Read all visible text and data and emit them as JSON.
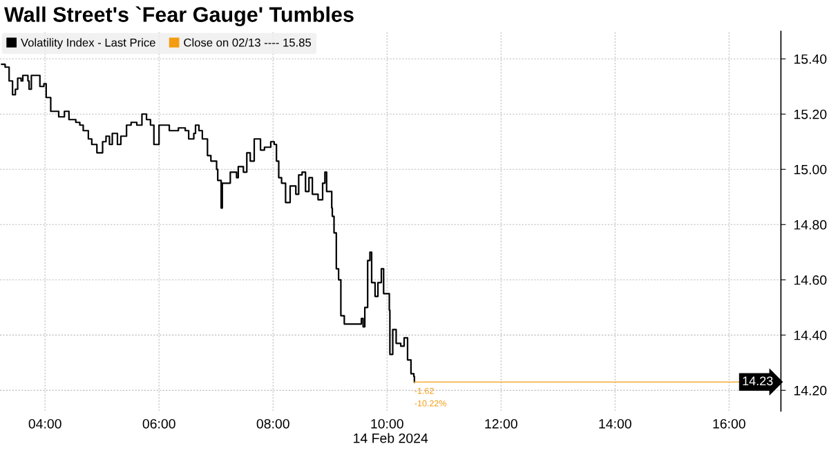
{
  "chart_data": {
    "type": "step",
    "title": "Wall Street's `Fear Gauge' Tumbles",
    "xlabel": "14 Feb 2024",
    "series": [
      {
        "name": "Volatility Index - Last Price",
        "color": "#000000",
        "x": [
          3.24,
          3.3,
          3.37,
          3.43,
          3.48,
          3.52,
          3.58,
          3.61,
          3.7,
          3.72,
          3.76,
          3.85,
          3.91,
          3.98,
          4.02,
          4.1,
          4.16,
          4.24,
          4.3,
          4.34,
          4.42,
          4.48,
          4.54,
          4.61,
          4.67,
          4.76,
          4.82,
          4.91,
          4.95,
          5.01,
          5.07,
          5.13,
          5.18,
          5.27,
          5.33,
          5.43,
          5.51,
          5.61,
          5.7,
          5.78,
          5.85,
          5.91,
          6.0,
          6.06,
          6.18,
          6.34,
          6.46,
          6.52,
          6.61,
          6.64,
          6.7,
          6.76,
          6.85,
          6.91,
          7.01,
          7.03,
          7.09,
          7.11,
          7.18,
          7.25,
          7.36,
          7.39,
          7.48,
          7.54,
          7.6,
          7.67,
          7.78,
          7.85,
          7.96,
          8.02,
          8.06,
          8.1,
          8.15,
          8.22,
          8.3,
          8.4,
          8.45,
          8.51,
          8.57,
          8.63,
          8.69,
          8.79,
          8.87,
          8.91,
          8.94,
          9.03,
          9.04,
          9.07,
          9.11,
          9.15,
          9.19,
          9.25,
          9.55,
          9.58,
          9.61,
          9.66,
          9.7,
          9.73,
          9.79,
          9.84,
          9.9,
          9.94,
          10.04,
          10.05,
          10.1,
          10.16,
          10.24,
          10.3,
          10.36,
          10.42,
          10.47,
          10.48
        ],
        "values": [
          15.38,
          15.37,
          15.32,
          15.27,
          15.29,
          15.33,
          15.32,
          15.34,
          15.32,
          15.29,
          15.34,
          15.34,
          15.3,
          15.31,
          15.26,
          15.21,
          15.21,
          15.19,
          15.19,
          15.21,
          15.18,
          15.18,
          15.17,
          15.16,
          15.14,
          15.11,
          15.09,
          15.06,
          15.06,
          15.1,
          15.12,
          15.09,
          15.13,
          15.09,
          15.12,
          15.16,
          15.17,
          15.16,
          15.2,
          15.18,
          15.16,
          15.09,
          15.16,
          15.16,
          15.14,
          15.15,
          15.14,
          15.11,
          15.13,
          15.16,
          15.14,
          15.11,
          15.05,
          15.03,
          15.0,
          14.96,
          14.86,
          14.95,
          14.95,
          14.99,
          14.97,
          15.01,
          14.99,
          15.06,
          15.03,
          15.11,
          15.07,
          15.08,
          15.1,
          15.09,
          15.03,
          14.97,
          14.95,
          14.88,
          14.94,
          14.91,
          14.98,
          14.99,
          14.92,
          14.97,
          14.91,
          14.89,
          14.95,
          14.99,
          14.92,
          14.86,
          14.83,
          14.77,
          14.64,
          14.6,
          14.47,
          14.44,
          14.46,
          14.43,
          14.5,
          14.67,
          14.7,
          14.59,
          14.54,
          14.59,
          14.64,
          14.55,
          14.49,
          14.33,
          14.42,
          14.37,
          14.36,
          14.39,
          14.31,
          14.26,
          14.25,
          14.23
        ]
      }
    ],
    "ref_lines": [
      {
        "axis": "y",
        "value": 14.23,
        "label": "14.23",
        "color": "#f39c12"
      }
    ],
    "annotations": [
      {
        "text": "-1.62",
        "x": 10.48,
        "y": 14.23
      },
      {
        "text": "-10.22%",
        "x": 10.48,
        "y": 14.23
      },
      "Close on 02/13 ---- 15.85"
    ],
    "xlim": [
      3.21,
      16.91
    ],
    "ylim": [
      14.125,
      15.5
    ],
    "xticks": [
      {
        "value": 4,
        "label": "04:00"
      },
      {
        "value": 6,
        "label": "06:00"
      },
      {
        "value": 8,
        "label": "08:00"
      },
      {
        "value": 10,
        "label": "10:00"
      },
      {
        "value": 12,
        "label": "12:00"
      },
      {
        "value": 14,
        "label": "14:00"
      },
      {
        "value": 16,
        "label": "16:00"
      }
    ],
    "yticks": [
      {
        "value": 14.2,
        "label": "14.20"
      },
      {
        "value": 14.4,
        "label": "14.40"
      },
      {
        "value": 14.6,
        "label": "14.60"
      },
      {
        "value": 14.8,
        "label": "14.80"
      },
      {
        "value": 15.0,
        "label": "15.00"
      },
      {
        "value": 15.2,
        "label": "15.20"
      },
      {
        "value": 15.4,
        "label": "15.40"
      }
    ],
    "grid": true,
    "legend": "top left"
  }
}
